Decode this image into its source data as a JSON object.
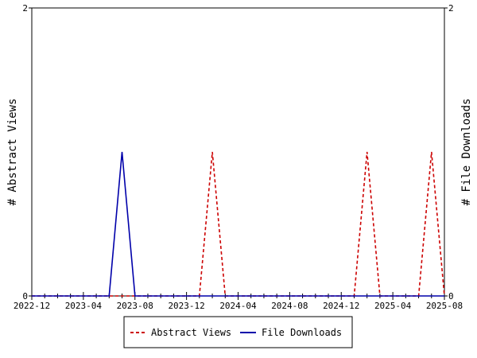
{
  "chart_data": {
    "type": "line",
    "x_tick_labels": [
      "2022-12",
      "2023-04",
      "2023-08",
      "2023-12",
      "2024-04",
      "2024-08",
      "2024-12",
      "2025-04",
      "2025-08"
    ],
    "ylabel_left": "# Abstract Views",
    "ylabel_right": "# File Downloads",
    "ylim_left": [
      0,
      2
    ],
    "ylim_right": [
      0,
      2
    ],
    "y_tick_labels_left": [
      "0",
      "2"
    ],
    "y_tick_labels_right": [
      "0",
      "2"
    ],
    "grid": false,
    "legend_position": "bottom-center",
    "series": [
      {
        "name": "Abstract Views",
        "axis": "left",
        "color": "#cc0000",
        "style": "dashed",
        "x": [
          "2022-12",
          "2023-01",
          "2023-02",
          "2023-03",
          "2023-04",
          "2023-05",
          "2023-06",
          "2023-07",
          "2023-08",
          "2023-09",
          "2023-10",
          "2023-11",
          "2023-12",
          "2024-01",
          "2024-02",
          "2024-03",
          "2024-04",
          "2024-05",
          "2024-06",
          "2024-07",
          "2024-08",
          "2024-09",
          "2024-10",
          "2024-11",
          "2024-12",
          "2025-01",
          "2025-02",
          "2025-03",
          "2025-04",
          "2025-05",
          "2025-06",
          "2025-07",
          "2025-08"
        ],
        "values": [
          0,
          0,
          0,
          0,
          0,
          0,
          0,
          0,
          0,
          0,
          0,
          0,
          0,
          0,
          1,
          0,
          0,
          0,
          0,
          0,
          0,
          0,
          0,
          0,
          0,
          0,
          1,
          0,
          0,
          0,
          0,
          1,
          0
        ]
      },
      {
        "name": "File Downloads",
        "axis": "right",
        "color": "#0000aa",
        "style": "solid",
        "x": [
          "2022-12",
          "2023-01",
          "2023-02",
          "2023-03",
          "2023-04",
          "2023-05",
          "2023-06",
          "2023-07",
          "2023-08",
          "2023-09",
          "2023-10",
          "2023-11",
          "2023-12",
          "2024-01",
          "2024-02",
          "2024-03",
          "2024-04",
          "2024-05",
          "2024-06",
          "2024-07",
          "2024-08",
          "2024-09",
          "2024-10",
          "2024-11",
          "2024-12",
          "2025-01",
          "2025-02",
          "2025-03",
          "2025-04",
          "2025-05",
          "2025-06",
          "2025-07",
          "2025-08"
        ],
        "values": [
          0,
          0,
          0,
          0,
          0,
          0,
          0,
          1,
          0,
          0,
          0,
          0,
          0,
          0,
          0,
          0,
          0,
          0,
          0,
          0,
          0,
          0,
          0,
          0,
          0,
          0,
          0,
          0,
          0,
          0,
          0,
          0,
          0
        ]
      }
    ]
  }
}
